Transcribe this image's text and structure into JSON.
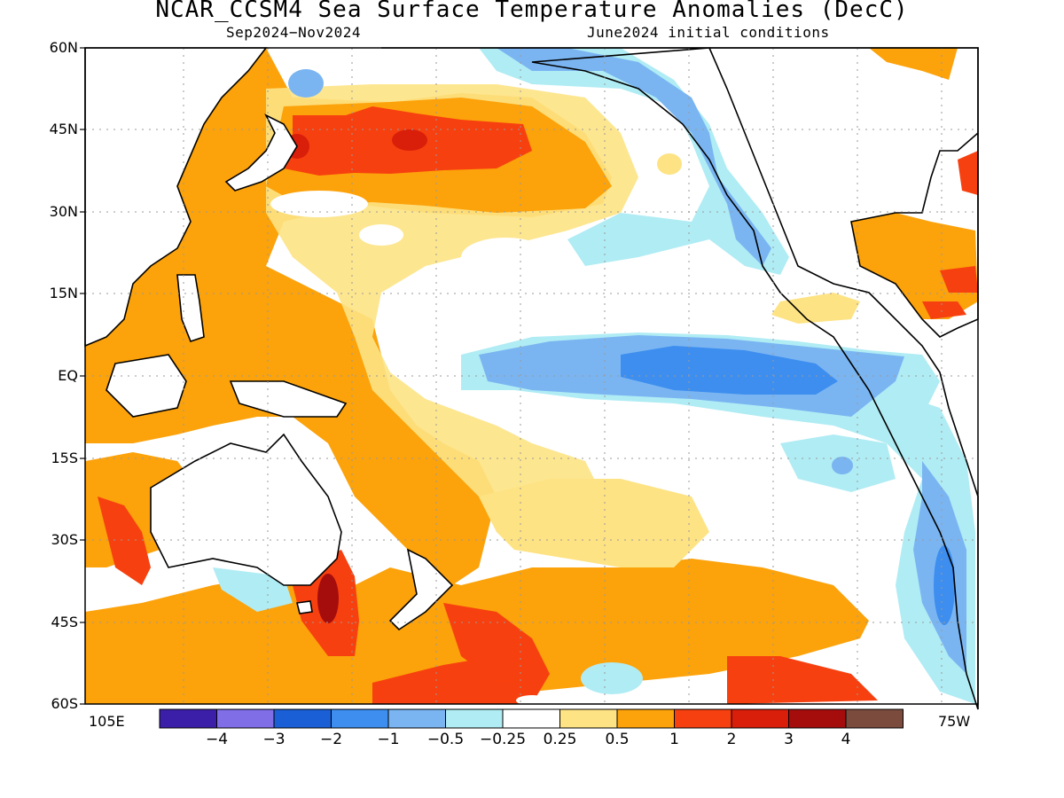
{
  "title": "NCAR_CCSM4 Sea Surface Temperature Anomalies (DecC)",
  "subtitle_left": "Sep2024−Nov2024",
  "subtitle_right": "June2024 initial conditions",
  "lat_labels": [
    "60N",
    "45N",
    "30N",
    "15N",
    "EQ",
    "15S",
    "30S",
    "45S",
    "60S"
  ],
  "lon_labels": {
    "left": "105E",
    "right": "75W"
  },
  "colorbar": {
    "colors": [
      "#3b1fa8",
      "#7f6ee6",
      "#1a5fd6",
      "#3d8eef",
      "#7ab5f2",
      "#b0ecf4",
      "#ffffff",
      "#fde384",
      "#fca20a",
      "#f7400f",
      "#d91e0a",
      "#a50d0d",
      "#7b4b3e"
    ],
    "labels": [
      "−4",
      "−3",
      "−2",
      "−1",
      "−0.5",
      "−0.25",
      "0.25",
      "0.5",
      "1",
      "2",
      "3",
      "4"
    ]
  },
  "legend_colors": {
    "warm_strong": "#f7400f",
    "warm": "#fca20a",
    "warm_weak": "#fde384",
    "cool_weak": "#b0ecf4",
    "cool": "#7ab5f2",
    "cool_strong": "#3d8eef",
    "extreme_warm": "#a50d0d"
  }
}
